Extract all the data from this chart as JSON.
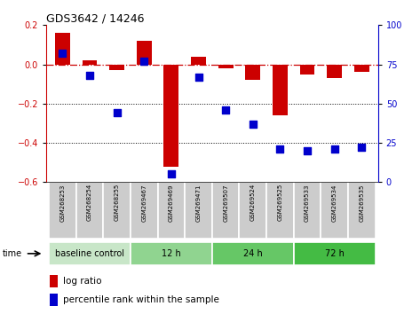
{
  "title": "GDS3642 / 14246",
  "samples": [
    "GSM268253",
    "GSM268254",
    "GSM268255",
    "GSM269467",
    "GSM269469",
    "GSM269471",
    "GSM269507",
    "GSM269524",
    "GSM269525",
    "GSM269533",
    "GSM269534",
    "GSM269535"
  ],
  "log_ratio": [
    0.16,
    0.02,
    -0.03,
    0.12,
    -0.52,
    0.04,
    -0.02,
    -0.08,
    -0.26,
    -0.05,
    -0.07,
    -0.04
  ],
  "percentile_rank": [
    82,
    68,
    44,
    77,
    5,
    67,
    46,
    37,
    21,
    20,
    21,
    22
  ],
  "bar_color": "#cc0000",
  "dot_color": "#0000cc",
  "zero_line_color": "#cc0000",
  "dotted_line_color": "#000000",
  "ylim_left": [
    -0.6,
    0.2
  ],
  "ylim_right": [
    0,
    100
  ],
  "yticks_left": [
    -0.6,
    -0.4,
    -0.2,
    0.0,
    0.2
  ],
  "yticks_right": [
    0,
    25,
    50,
    75,
    100
  ],
  "groups": [
    {
      "label": "baseline control",
      "start": 0,
      "end": 3,
      "color": "#c8e6c8"
    },
    {
      "label": "12 h",
      "start": 3,
      "end": 6,
      "color": "#90d490"
    },
    {
      "label": "24 h",
      "start": 6,
      "end": 9,
      "color": "#66c766"
    },
    {
      "label": "72 h",
      "start": 9,
      "end": 12,
      "color": "#44bb44"
    }
  ],
  "time_label": "time",
  "legend_log_ratio": "log ratio",
  "legend_percentile": "percentile rank within the sample",
  "bar_width": 0.55,
  "dot_size": 28,
  "fig_width": 4.73,
  "fig_height": 3.54,
  "dpi": 100
}
